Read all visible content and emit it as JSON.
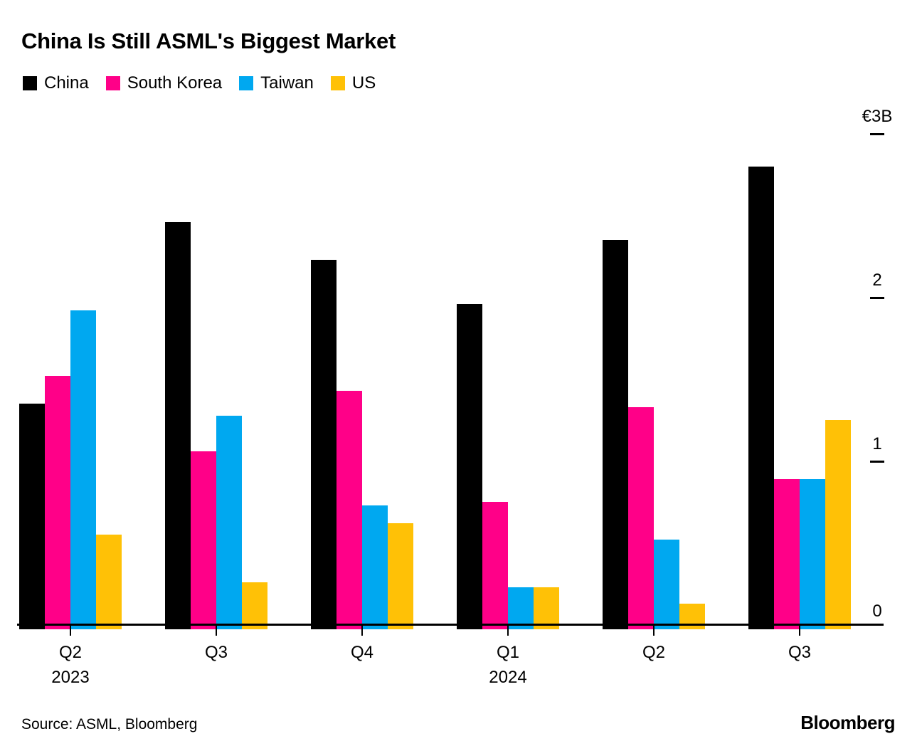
{
  "title": "China Is Still ASML's Biggest Market",
  "footer": {
    "source": "Source: ASML, Bloomberg",
    "brand": "Bloomberg"
  },
  "colors": {
    "china": "#000000",
    "south_korea": "#FF0088",
    "taiwan": "#00A8F0",
    "us": "#FFC106",
    "axis": "#000000",
    "background": "#FFFFFF"
  },
  "chart_data": {
    "type": "bar",
    "title": "China Is Still ASML's Biggest Market",
    "unit": "EUR billions",
    "categories": [
      {
        "quarter": "Q2",
        "year": "2023"
      },
      {
        "quarter": "Q3",
        "year": ""
      },
      {
        "quarter": "Q4",
        "year": ""
      },
      {
        "quarter": "Q1",
        "year": "2024"
      },
      {
        "quarter": "Q2",
        "year": ""
      },
      {
        "quarter": "Q3",
        "year": ""
      }
    ],
    "series": [
      {
        "name": "China",
        "color": "#000000",
        "values": [
          1.35,
          2.46,
          2.23,
          1.96,
          2.35,
          2.8
        ]
      },
      {
        "name": "South Korea",
        "color": "#FF0088",
        "values": [
          1.52,
          1.06,
          1.43,
          0.75,
          1.33,
          0.89
        ]
      },
      {
        "name": "Taiwan",
        "color": "#00A8F0",
        "values": [
          1.92,
          1.28,
          0.73,
          0.23,
          0.52,
          0.89
        ]
      },
      {
        "name": "US",
        "color": "#FFC106",
        "values": [
          0.55,
          0.26,
          0.62,
          0.23,
          0.13,
          1.25
        ]
      }
    ],
    "ylim": [
      0,
      3
    ],
    "yticks": [
      {
        "label": "€3B",
        "value": 3
      },
      {
        "label": "2",
        "value": 2
      },
      {
        "label": "1",
        "value": 1
      },
      {
        "label": "0",
        "value": 0
      }
    ],
    "legend_position": "top",
    "grid": false
  }
}
